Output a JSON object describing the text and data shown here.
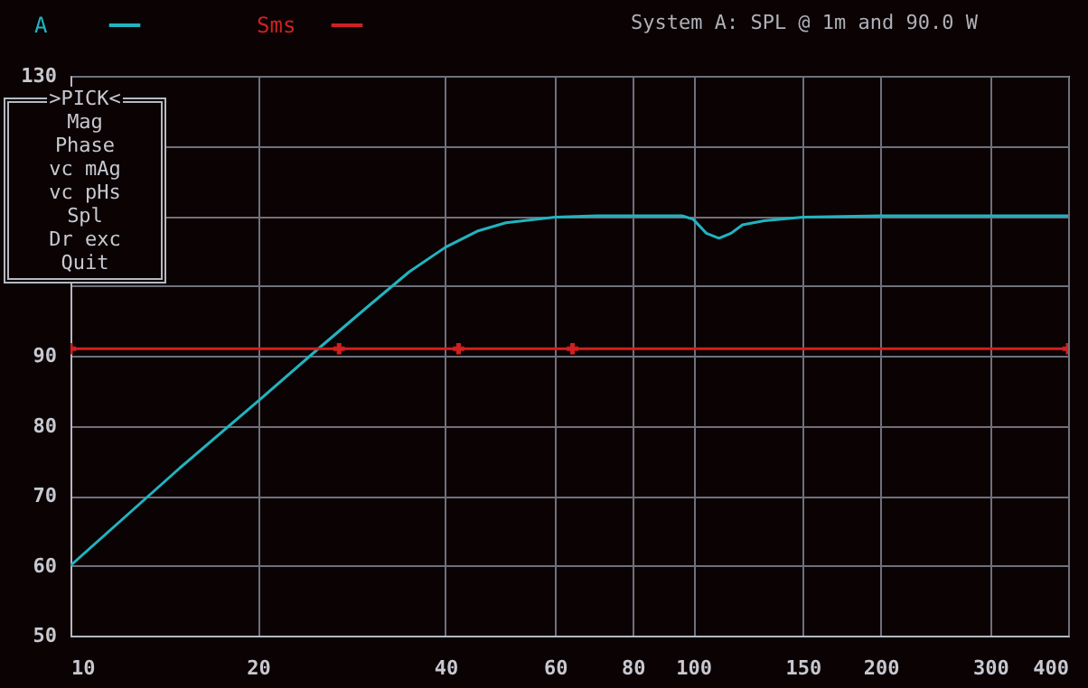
{
  "chart_data": {
    "type": "line",
    "title": "System A: SPL @ 1m and 90.0 W",
    "x": [
      10,
      15,
      20,
      25,
      30,
      35,
      40,
      45,
      50,
      60,
      70,
      90,
      96,
      100,
      105,
      110,
      115,
      120,
      130,
      150,
      200,
      300,
      400
    ],
    "series": [
      {
        "name": "A",
        "color": "#20b4c0",
        "values": [
          60,
          74,
          83.5,
          91,
          97,
          102,
          105.5,
          107.8,
          109,
          109.8,
          110,
          110,
          110,
          109.5,
          107.5,
          106.8,
          107.5,
          108.7,
          109.3,
          109.8,
          110,
          110,
          110
        ]
      },
      {
        "name": "Sms",
        "color": "#d02020",
        "x": [
          10,
          27,
          42,
          64,
          400
        ],
        "values": [
          91,
          91,
          91,
          91,
          91
        ],
        "marker": "cross"
      }
    ],
    "xlim": [
      10,
      400
    ],
    "xticks": [
      10,
      20,
      40,
      60,
      80,
      100,
      150,
      200,
      300,
      400
    ],
    "log": "x",
    "ylim": [
      50,
      130
    ],
    "yticks": [
      50,
      60,
      70,
      80,
      90,
      {
        "value": 100,
        "label": null
      },
      {
        "value": 110,
        "label": null
      },
      {
        "value": 120,
        "label": null
      },
      130
    ],
    "grid": true,
    "legend": "top left",
    "annotations": [
      ">PICK<",
      "Mag",
      "Phase",
      "vc mAg",
      "vc pHs",
      "Spl",
      "Dr exc",
      "Quit"
    ]
  }
}
